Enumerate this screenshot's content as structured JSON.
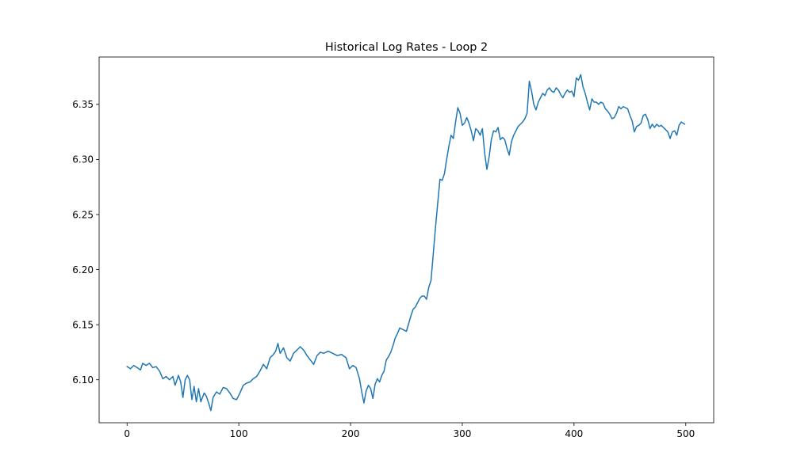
{
  "chart_data": {
    "type": "line",
    "title": "Historical Log Rates - Loop 2",
    "xlabel": "",
    "ylabel": "",
    "xlim": [
      -25,
      525
    ],
    "ylim": [
      6.061,
      6.393
    ],
    "xticks": [
      0,
      100,
      200,
      300,
      400,
      500
    ],
    "yticks": [
      6.1,
      6.15,
      6.2,
      6.25,
      6.3,
      6.35
    ],
    "xtick_labels": [
      "0",
      "100",
      "200",
      "300",
      "400",
      "500"
    ],
    "ytick_labels": [
      "6.10",
      "6.15",
      "6.20",
      "6.25",
      "6.30",
      "6.35"
    ],
    "grid": false,
    "legend": "none",
    "series_color": "#1f77b4",
    "series": [
      {
        "keypoints": [
          [
            0,
            6.112
          ],
          [
            3,
            6.11
          ],
          [
            6,
            6.113
          ],
          [
            9,
            6.111
          ],
          [
            12,
            6.109
          ],
          [
            14,
            6.115
          ],
          [
            17,
            6.113
          ],
          [
            20,
            6.115
          ],
          [
            23,
            6.111
          ],
          [
            26,
            6.112
          ],
          [
            29,
            6.108
          ],
          [
            32,
            6.101
          ],
          [
            35,
            6.103
          ],
          [
            38,
            6.1
          ],
          [
            41,
            6.103
          ],
          [
            43,
            6.095
          ],
          [
            46,
            6.104
          ],
          [
            48,
            6.098
          ],
          [
            50,
            6.084
          ],
          [
            52,
            6.1
          ],
          [
            54,
            6.104
          ],
          [
            56,
            6.1
          ],
          [
            58,
            6.082
          ],
          [
            60,
            6.094
          ],
          [
            62,
            6.08
          ],
          [
            64,
            6.092
          ],
          [
            66,
            6.08
          ],
          [
            69,
            6.088
          ],
          [
            71,
            6.085
          ],
          [
            73,
            6.079
          ],
          [
            75,
            6.072
          ],
          [
            77,
            6.084
          ],
          [
            80,
            6.089
          ],
          [
            83,
            6.087
          ],
          [
            86,
            6.093
          ],
          [
            89,
            6.092
          ],
          [
            92,
            6.088
          ],
          [
            95,
            6.083
          ],
          [
            98,
            6.082
          ],
          [
            101,
            6.088
          ],
          [
            104,
            6.095
          ],
          [
            107,
            6.097
          ],
          [
            110,
            6.098
          ],
          [
            113,
            6.101
          ],
          [
            116,
            6.103
          ],
          [
            119,
            6.108
          ],
          [
            122,
            6.114
          ],
          [
            125,
            6.11
          ],
          [
            128,
            6.12
          ],
          [
            131,
            6.123
          ],
          [
            133,
            6.126
          ],
          [
            135,
            6.133
          ],
          [
            137,
            6.124
          ],
          [
            140,
            6.129
          ],
          [
            143,
            6.12
          ],
          [
            146,
            6.117
          ],
          [
            149,
            6.124
          ],
          [
            152,
            6.127
          ],
          [
            155,
            6.13
          ],
          [
            158,
            6.127
          ],
          [
            161,
            6.122
          ],
          [
            164,
            6.118
          ],
          [
            167,
            6.114
          ],
          [
            170,
            6.122
          ],
          [
            173,
            6.125
          ],
          [
            176,
            6.124
          ],
          [
            180,
            6.126
          ],
          [
            184,
            6.124
          ],
          [
            188,
            6.122
          ],
          [
            192,
            6.123
          ],
          [
            196,
            6.12
          ],
          [
            199,
            6.11
          ],
          [
            202,
            6.113
          ],
          [
            205,
            6.111
          ],
          [
            208,
            6.101
          ],
          [
            210,
            6.089
          ],
          [
            212,
            6.079
          ],
          [
            214,
            6.09
          ],
          [
            216,
            6.095
          ],
          [
            218,
            6.092
          ],
          [
            220,
            6.083
          ],
          [
            222,
            6.096
          ],
          [
            224,
            6.101
          ],
          [
            226,
            6.098
          ],
          [
            228,
            6.104
          ],
          [
            230,
            6.108
          ],
          [
            232,
            6.118
          ],
          [
            234,
            6.121
          ],
          [
            236,
            6.125
          ],
          [
            238,
            6.131
          ],
          [
            240,
            6.138
          ],
          [
            242,
            6.142
          ],
          [
            244,
            6.147
          ],
          [
            246,
            6.146
          ],
          [
            248,
            6.145
          ],
          [
            250,
            6.144
          ],
          [
            252,
            6.151
          ],
          [
            254,
            6.158
          ],
          [
            256,
            6.164
          ],
          [
            258,
            6.166
          ],
          [
            260,
            6.17
          ],
          [
            262,
            6.174
          ],
          [
            264,
            6.176
          ],
          [
            266,
            6.176
          ],
          [
            268,
            6.173
          ],
          [
            270,
            6.184
          ],
          [
            272,
            6.19
          ],
          [
            274,
            6.214
          ],
          [
            276,
            6.238
          ],
          [
            278,
            6.26
          ],
          [
            280,
            6.282
          ],
          [
            282,
            6.281
          ],
          [
            284,
            6.287
          ],
          [
            286,
            6.3
          ],
          [
            288,
            6.312
          ],
          [
            290,
            6.322
          ],
          [
            292,
            6.319
          ],
          [
            294,
            6.334
          ],
          [
            296,
            6.347
          ],
          [
            298,
            6.342
          ],
          [
            300,
            6.331
          ],
          [
            302,
            6.333
          ],
          [
            304,
            6.338
          ],
          [
            306,
            6.333
          ],
          [
            308,
            6.326
          ],
          [
            310,
            6.317
          ],
          [
            312,
            6.328
          ],
          [
            314,
            6.326
          ],
          [
            316,
            6.322
          ],
          [
            318,
            6.328
          ],
          [
            320,
            6.306
          ],
          [
            322,
            6.291
          ],
          [
            324,
            6.302
          ],
          [
            326,
            6.318
          ],
          [
            328,
            6.326
          ],
          [
            330,
            6.325
          ],
          [
            332,
            6.329
          ],
          [
            334,
            6.318
          ],
          [
            336,
            6.32
          ],
          [
            338,
            6.318
          ],
          [
            340,
            6.31
          ],
          [
            342,
            6.304
          ],
          [
            344,
            6.316
          ],
          [
            346,
            6.322
          ],
          [
            348,
            6.326
          ],
          [
            350,
            6.33
          ],
          [
            352,
            6.332
          ],
          [
            354,
            6.334
          ],
          [
            356,
            6.337
          ],
          [
            358,
            6.342
          ],
          [
            360,
            6.371
          ],
          [
            362,
            6.362
          ],
          [
            364,
            6.35
          ],
          [
            366,
            6.345
          ],
          [
            368,
            6.352
          ],
          [
            370,
            6.356
          ],
          [
            372,
            6.36
          ],
          [
            374,
            6.358
          ],
          [
            376,
            6.363
          ],
          [
            378,
            6.365
          ],
          [
            380,
            6.362
          ],
          [
            382,
            6.361
          ],
          [
            384,
            6.365
          ],
          [
            386,
            6.363
          ],
          [
            388,
            6.359
          ],
          [
            390,
            6.356
          ],
          [
            392,
            6.36
          ],
          [
            394,
            6.363
          ],
          [
            396,
            6.361
          ],
          [
            398,
            6.362
          ],
          [
            400,
            6.357
          ],
          [
            402,
            6.374
          ],
          [
            404,
            6.372
          ],
          [
            406,
            6.377
          ],
          [
            408,
            6.366
          ],
          [
            410,
            6.36
          ],
          [
            412,
            6.352
          ],
          [
            414,
            6.345
          ],
          [
            416,
            6.355
          ],
          [
            418,
            6.352
          ],
          [
            420,
            6.352
          ],
          [
            422,
            6.35
          ],
          [
            424,
            6.352
          ],
          [
            426,
            6.351
          ],
          [
            428,
            6.346
          ],
          [
            430,
            6.344
          ],
          [
            432,
            6.341
          ],
          [
            434,
            6.337
          ],
          [
            436,
            6.338
          ],
          [
            438,
            6.342
          ],
          [
            440,
            6.348
          ],
          [
            442,
            6.346
          ],
          [
            444,
            6.348
          ],
          [
            446,
            6.347
          ],
          [
            448,
            6.346
          ],
          [
            450,
            6.34
          ],
          [
            452,
            6.335
          ],
          [
            454,
            6.325
          ],
          [
            456,
            6.33
          ],
          [
            458,
            6.331
          ],
          [
            460,
            6.333
          ],
          [
            462,
            6.34
          ],
          [
            464,
            6.341
          ],
          [
            466,
            6.336
          ],
          [
            468,
            6.328
          ],
          [
            470,
            6.332
          ],
          [
            472,
            6.329
          ],
          [
            474,
            6.332
          ],
          [
            476,
            6.33
          ],
          [
            478,
            6.331
          ],
          [
            480,
            6.329
          ],
          [
            482,
            6.327
          ],
          [
            484,
            6.325
          ],
          [
            486,
            6.319
          ],
          [
            488,
            6.325
          ],
          [
            490,
            6.326
          ],
          [
            492,
            6.322
          ],
          [
            494,
            6.331
          ],
          [
            496,
            6.334
          ],
          [
            499,
            6.332
          ]
        ]
      }
    ]
  }
}
